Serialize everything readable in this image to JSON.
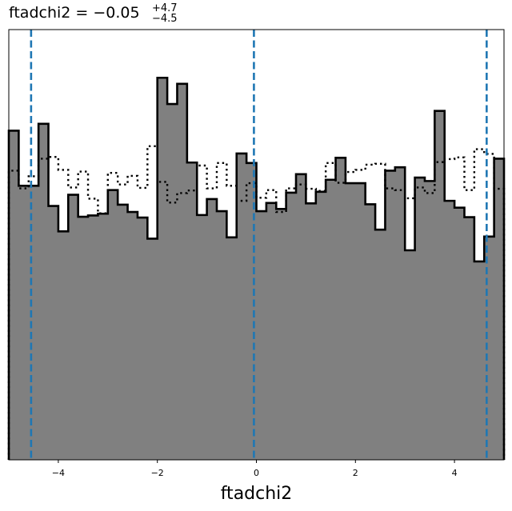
{
  "chart_data": {
    "type": "histogram",
    "title": {
      "prefix": "ftadchi2 = −0.05",
      "upper_err": "+4.7",
      "lower_err": "−4.5"
    },
    "xlabel": "ftadchi2",
    "ylabel": "",
    "xlim": [
      -5,
      5
    ],
    "ylim": [
      0,
      1
    ],
    "xticks": [
      -4,
      -2,
      0,
      2,
      4
    ],
    "xtick_labels": [
      "−4",
      "−2",
      "0",
      "2",
      "4"
    ],
    "yticks": [],
    "grid": false,
    "colors": {
      "filled_hist": "#808080",
      "edge": "#000000",
      "marker_lines": "#1f77b4"
    },
    "bins": {
      "start": -5,
      "width": 0.2
    },
    "series": [
      {
        "style": "filled-step",
        "values": [
          0.765,
          0.637,
          0.637,
          0.781,
          0.59,
          0.531,
          0.616,
          0.565,
          0.568,
          0.572,
          0.627,
          0.593,
          0.576,
          0.563,
          0.514,
          0.888,
          0.827,
          0.874,
          0.691,
          0.569,
          0.606,
          0.578,
          0.517,
          0.712,
          0.69,
          0.578,
          0.597,
          0.583,
          0.621,
          0.664,
          0.596,
          0.623,
          0.651,
          0.702,
          0.643,
          0.643,
          0.594,
          0.535,
          0.672,
          0.68,
          0.487,
          0.656,
          0.648,
          0.811,
          0.602,
          0.586,
          0.564,
          0.461,
          0.519,
          0.7
        ]
      },
      {
        "style": "dotted-step",
        "values": [
          0.672,
          0.631,
          0.659,
          0.7,
          0.704,
          0.674,
          0.633,
          0.67,
          0.607,
          0.573,
          0.667,
          0.64,
          0.66,
          0.632,
          0.729,
          0.646,
          0.598,
          0.62,
          0.626,
          0.684,
          0.631,
          0.69,
          0.637,
          0.602,
          0.643,
          0.609,
          0.627,
          0.576,
          0.631,
          0.64,
          0.63,
          0.625,
          0.69,
          0.644,
          0.669,
          0.674,
          0.686,
          0.688,
          0.631,
          0.627,
          0.608,
          0.633,
          0.62,
          0.692,
          0.699,
          0.703,
          0.627,
          0.722,
          0.711,
          0.63
        ]
      }
    ],
    "vlines": [
      -4.55,
      -0.05,
      4.65
    ]
  }
}
